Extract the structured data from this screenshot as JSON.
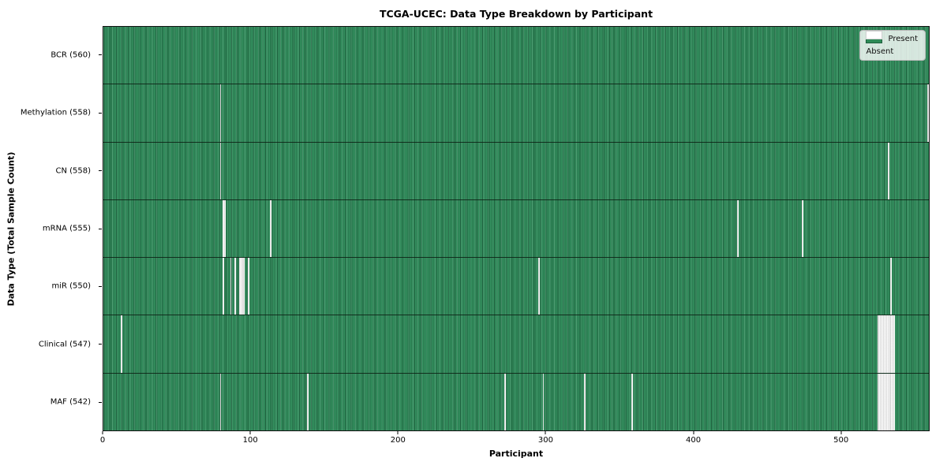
{
  "title": "TCGA-UCEC: Data Type Breakdown by Participant",
  "x_axis_label": "Participant",
  "y_axis_label": "Data Type (Total Sample Count)",
  "legend": {
    "present_label": "Present",
    "absent_label": "Absent"
  },
  "colors": {
    "present": "#2e8b57",
    "absent": "#ffffff",
    "cell_edge": "#1e5f3d",
    "row_divider": "#0c1e13",
    "legend_background": "rgba(255,255,255,0.8)"
  },
  "chart_data": {
    "type": "heatmap",
    "title": "TCGA-UCEC: Data Type Breakdown by Participant",
    "xlabel": "Participant",
    "ylabel": "Data Type (Total Sample Count)",
    "n_participants": 560,
    "xlim": [
      0,
      560
    ],
    "x_ticks": [
      0,
      100,
      200,
      300,
      400,
      500
    ],
    "grid": false,
    "legend_entries": [
      "Present",
      "Absent"
    ],
    "legend_position": "upper right",
    "value_encoding": {
      "present": 1,
      "absent": 0
    },
    "rows": [
      {
        "label": "BCR (560)",
        "data_type": "BCR",
        "sample_count": 560,
        "absent_participants": []
      },
      {
        "label": "Methylation (558)",
        "data_type": "Methylation",
        "sample_count": 558,
        "absent_participants": [
          79,
          559
        ]
      },
      {
        "label": "CN (558)",
        "data_type": "CN",
        "sample_count": 558,
        "absent_participants": [
          79,
          532
        ]
      },
      {
        "label": "mRNA (555)",
        "data_type": "mRNA",
        "sample_count": 555,
        "absent_participants": [
          81,
          82,
          113,
          430,
          474
        ]
      },
      {
        "label": "miR (550)",
        "data_type": "miR",
        "sample_count": 550,
        "absent_participants": [
          81,
          86,
          89,
          92,
          93,
          94,
          95,
          98,
          295,
          534
        ]
      },
      {
        "label": "Clinical (547)",
        "data_type": "Clinical",
        "sample_count": 547,
        "absent_participants": [
          12,
          525,
          526,
          527,
          528,
          529,
          530,
          531,
          532,
          533,
          534,
          535,
          536
        ]
      },
      {
        "label": "MAF (542)",
        "data_type": "MAF",
        "sample_count": 542,
        "absent_participants": [
          79,
          138,
          272,
          298,
          326,
          358,
          525,
          526,
          527,
          528,
          529,
          530,
          531,
          532,
          533,
          534,
          535,
          536
        ]
      }
    ]
  }
}
